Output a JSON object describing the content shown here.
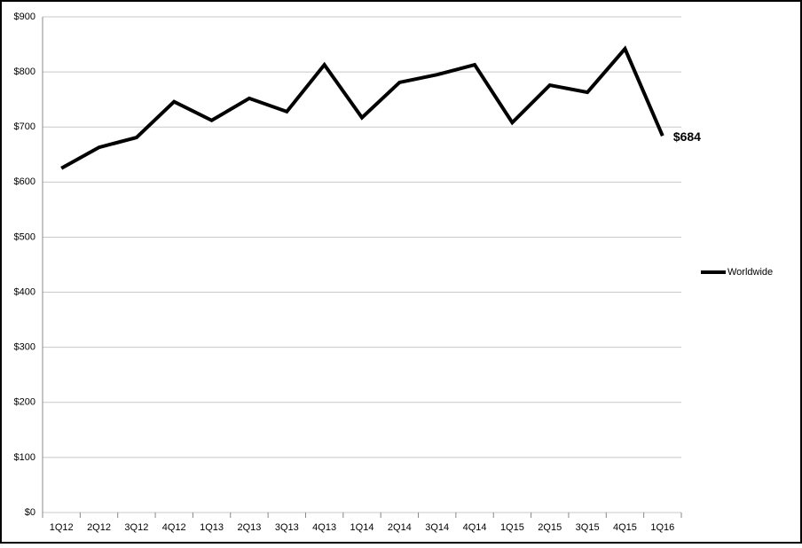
{
  "chart_data": {
    "type": "line",
    "categories": [
      "1Q12",
      "2Q12",
      "3Q12",
      "4Q12",
      "1Q13",
      "2Q13",
      "3Q13",
      "4Q13",
      "1Q14",
      "2Q14",
      "3Q14",
      "4Q14",
      "1Q15",
      "2Q15",
      "3Q15",
      "4Q15",
      "1Q16"
    ],
    "series": [
      {
        "name": "Worldwide",
        "color": "#000000",
        "values": [
          625,
          663,
          681,
          746,
          712,
          752,
          728,
          813,
          717,
          781,
          795,
          813,
          708,
          776,
          763,
          842,
          684
        ],
        "value_labels": [
          null,
          null,
          null,
          null,
          null,
          null,
          null,
          null,
          null,
          null,
          null,
          null,
          null,
          null,
          null,
          null,
          "$684"
        ]
      }
    ],
    "ylim": [
      0,
      900
    ],
    "yticks": [
      {
        "value": 0,
        "label": "$0"
      },
      {
        "value": 100,
        "label": "$100"
      },
      {
        "value": 200,
        "label": "$200"
      },
      {
        "value": 300,
        "label": "$300"
      },
      {
        "value": 400,
        "label": "$400"
      },
      {
        "value": 500,
        "label": "$500"
      },
      {
        "value": 600,
        "label": "$600"
      },
      {
        "value": 700,
        "label": "$700"
      },
      {
        "value": 800,
        "label": "$800"
      },
      {
        "value": 900,
        "label": "$900"
      }
    ],
    "grid": true,
    "legend": "right"
  }
}
